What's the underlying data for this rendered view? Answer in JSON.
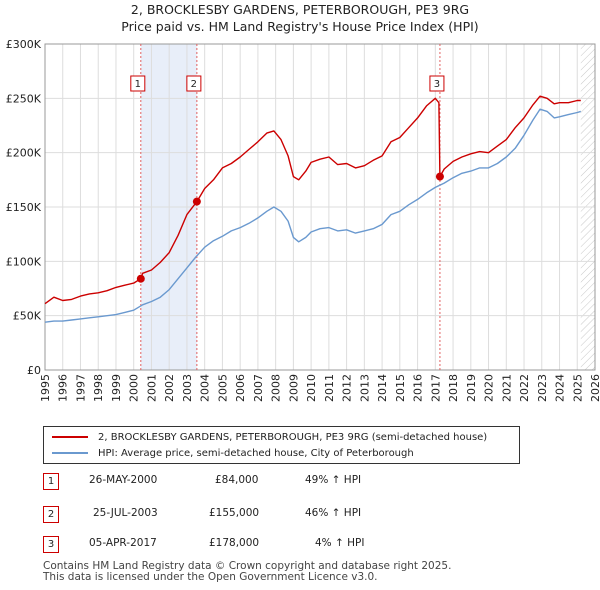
{
  "chart_data": {
    "type": "line",
    "title": "2, BROCKLESBY GARDENS, PETERBOROUGH, PE3 9RG",
    "subtitle": "Price paid vs. HM Land Registry's House Price Index (HPI)",
    "xlim": [
      1995,
      2026
    ],
    "ylim": [
      0,
      300000
    ],
    "x_ticks": [
      1995,
      1996,
      1997,
      1998,
      1999,
      2000,
      2001,
      2002,
      2003,
      2004,
      2005,
      2006,
      2007,
      2008,
      2009,
      2010,
      2011,
      2012,
      2013,
      2014,
      2015,
      2016,
      2017,
      2018,
      2019,
      2020,
      2021,
      2022,
      2023,
      2024,
      2025,
      2026
    ],
    "y_ticks": [
      {
        "value": 0,
        "label": "£0"
      },
      {
        "value": 50000,
        "label": "£50K"
      },
      {
        "value": 100000,
        "label": "£100K"
      },
      {
        "value": 150000,
        "label": "£150K"
      },
      {
        "value": 200000,
        "label": "£200K"
      },
      {
        "value": 250000,
        "label": "£250K"
      },
      {
        "value": 300000,
        "label": "£300K"
      }
    ],
    "series": [
      {
        "name": "2, BROCKLESBY GARDENS, PETERBOROUGH, PE3 9RG (semi-detached house)",
        "color": "#cc0000",
        "x": [
          1995.0,
          1995.5,
          1996.0,
          1996.5,
          1997.0,
          1997.5,
          1998.0,
          1998.5,
          1999.0,
          1999.5,
          2000.0,
          2000.4,
          2000.5,
          2001.0,
          2001.5,
          2002.0,
          2002.5,
          2003.0,
          2003.56,
          2004.0,
          2004.5,
          2005.0,
          2005.5,
          2006.0,
          2006.5,
          2007.0,
          2007.5,
          2007.9,
          2008.3,
          2008.7,
          2009.0,
          2009.3,
          2009.7,
          2010.0,
          2010.5,
          2011.0,
          2011.5,
          2012.0,
          2012.5,
          2013.0,
          2013.5,
          2014.0,
          2014.5,
          2015.0,
          2015.5,
          2016.0,
          2016.5,
          2017.0,
          2017.2,
          2017.26,
          2017.5,
          2018.0,
          2018.5,
          2019.0,
          2019.5,
          2020.0,
          2020.5,
          2021.0,
          2021.5,
          2022.0,
          2022.5,
          2022.9,
          2023.3,
          2023.7,
          2024.0,
          2024.5,
          2025.0,
          2025.2
        ],
        "values": [
          61000,
          67000,
          64000,
          65000,
          68000,
          70000,
          71000,
          73000,
          76000,
          78000,
          80000,
          84000,
          89000,
          92000,
          99000,
          108000,
          124000,
          143000,
          155000,
          167000,
          175000,
          186000,
          190000,
          196000,
          203000,
          210000,
          218000,
          220000,
          212000,
          197000,
          178000,
          175000,
          183000,
          191000,
          194000,
          196000,
          189000,
          190000,
          186000,
          188000,
          193000,
          197000,
          210000,
          214000,
          223000,
          232000,
          243000,
          250000,
          246000,
          178000,
          185000,
          192000,
          196000,
          199000,
          201000,
          200000,
          206000,
          212000,
          223000,
          232000,
          244000,
          252000,
          250000,
          245000,
          246000,
          246000,
          248000,
          248000
        ]
      },
      {
        "name": "HPI: Average price, semi-detached house, City of Peterborough",
        "color": "#6a99cf",
        "x": [
          1995.0,
          1995.5,
          1996.0,
          1996.5,
          1997.0,
          1997.5,
          1998.0,
          1998.5,
          1999.0,
          1999.5,
          2000.0,
          2000.5,
          2001.0,
          2001.5,
          2002.0,
          2002.5,
          2003.0,
          2003.5,
          2004.0,
          2004.5,
          2005.0,
          2005.5,
          2006.0,
          2006.5,
          2007.0,
          2007.5,
          2007.9,
          2008.3,
          2008.7,
          2009.0,
          2009.3,
          2009.7,
          2010.0,
          2010.5,
          2011.0,
          2011.5,
          2012.0,
          2012.5,
          2013.0,
          2013.5,
          2014.0,
          2014.5,
          2015.0,
          2015.5,
          2016.0,
          2016.5,
          2017.0,
          2017.5,
          2018.0,
          2018.5,
          2019.0,
          2019.5,
          2020.0,
          2020.5,
          2021.0,
          2021.5,
          2022.0,
          2022.5,
          2022.9,
          2023.3,
          2023.7,
          2024.0,
          2024.5,
          2025.0,
          2025.2
        ],
        "values": [
          44000,
          45000,
          45000,
          46000,
          47000,
          48000,
          49000,
          50000,
          51000,
          53000,
          55000,
          60000,
          63000,
          67000,
          74000,
          84000,
          94000,
          104000,
          113000,
          119000,
          123000,
          128000,
          131000,
          135000,
          140000,
          146000,
          150000,
          146000,
          137000,
          122000,
          118000,
          122000,
          127000,
          130000,
          131000,
          128000,
          129000,
          126000,
          128000,
          130000,
          134000,
          143000,
          146000,
          152000,
          157000,
          163000,
          168000,
          172000,
          177000,
          181000,
          183000,
          186000,
          186000,
          190000,
          196000,
          204000,
          216000,
          230000,
          240000,
          238000,
          232000,
          233000,
          235000,
          237000,
          238000
        ]
      }
    ],
    "sales": [
      {
        "label": "1",
        "date": "26-MAY-2000",
        "x": 2000.4,
        "price": 84000,
        "price_text": "£84,000",
        "hpi_text": "49% ↑ HPI"
      },
      {
        "label": "2",
        "date": "25-JUL-2003",
        "x": 2003.56,
        "price": 155000,
        "price_text": "£155,000",
        "hpi_text": "46% ↑ HPI"
      },
      {
        "label": "3",
        "date": "05-APR-2017",
        "x": 2017.26,
        "price": 178000,
        "price_text": "£178,000",
        "hpi_text": "4% ↑ HPI"
      }
    ],
    "shaded_ranges": [
      [
        2000.4,
        2003.56
      ]
    ],
    "projection_start": 2025.2,
    "legend": {
      "placement": "below",
      "entries": [
        "2, BROCKLESBY GARDENS, PETERBOROUGH, PE3 9RG (semi-detached house)",
        "HPI: Average price, semi-detached house, City of Peterborough"
      ]
    }
  },
  "footer": {
    "line1": "Contains HM Land Registry data © Crown copyright and database right 2025.",
    "line2": "This data is licensed under the Open Government Licence v3.0."
  }
}
